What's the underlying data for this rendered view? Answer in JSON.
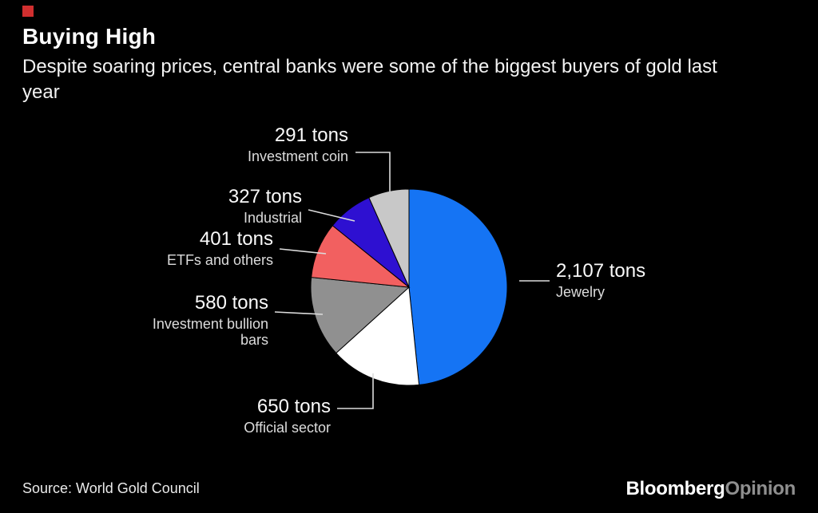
{
  "header": {
    "title": "Buying High",
    "subtitle": "Despite soaring prices, central banks were some of the biggest buyers of gold last year"
  },
  "chart_data": {
    "type": "pie",
    "title": "Buying High",
    "unit": "tons",
    "total": 4356,
    "start_angle_deg": -90,
    "direction": "clockwise",
    "slices": [
      {
        "label": "Jewelry",
        "value": 2107,
        "display": "2,107 tons",
        "color": "#1574f4"
      },
      {
        "label": "Official sector",
        "value": 650,
        "display": "650 tons",
        "color": "#ffffff"
      },
      {
        "label": "Investment bullion bars",
        "value": 580,
        "display": "580 tons",
        "color": "#909090"
      },
      {
        "label": "ETFs and others",
        "value": 401,
        "display": "401 tons",
        "color": "#f26060"
      },
      {
        "label": "Industrial",
        "value": 327,
        "display": "327 tons",
        "color": "#2e10d1"
      },
      {
        "label": "Investment coin",
        "value": 291,
        "display": "291 tons",
        "color": "#c8c8c8"
      }
    ]
  },
  "footer": {
    "source": "Source: World Gold Council",
    "brand": {
      "primary": "Bloomberg",
      "secondary": "Opinion"
    }
  }
}
